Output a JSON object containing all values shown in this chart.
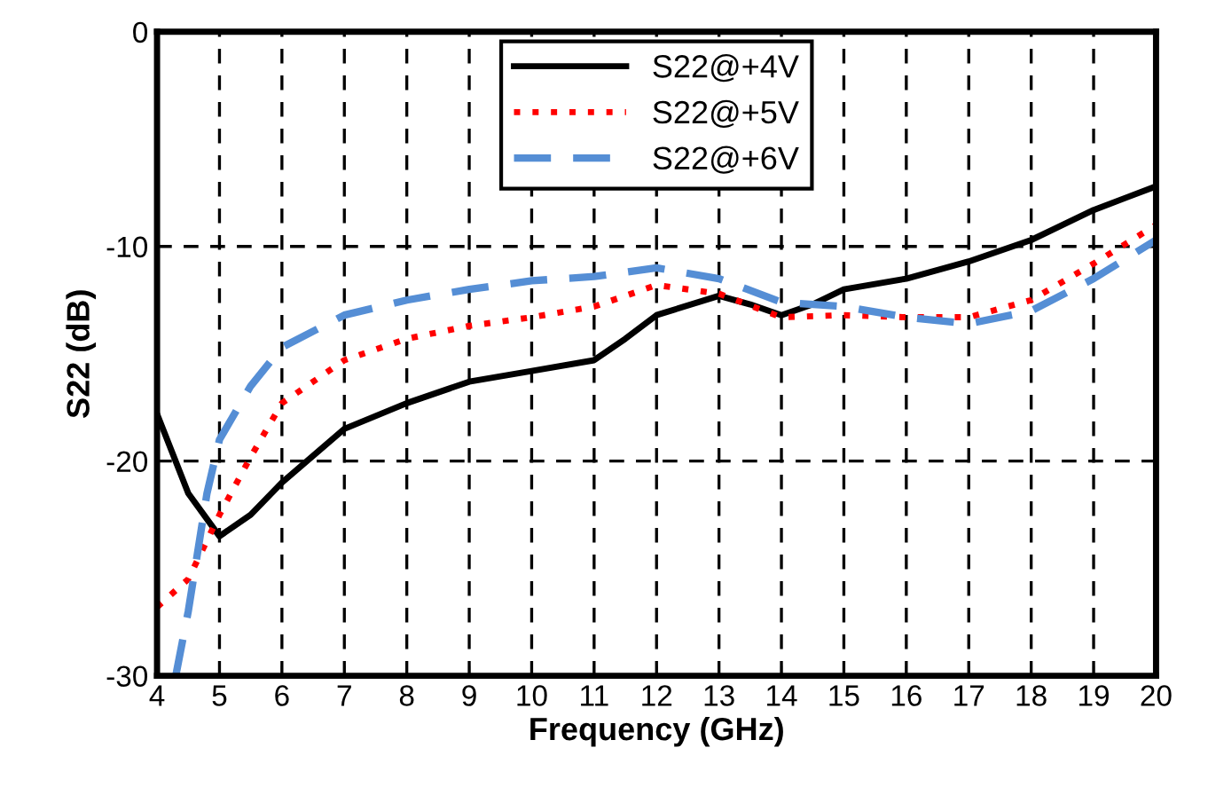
{
  "chart_data": {
    "type": "line",
    "xlabel": "Frequency (GHz)",
    "ylabel": "S22 (dB)",
    "xlim": [
      4,
      20
    ],
    "xticks": [
      4,
      5,
      6,
      7,
      8,
      9,
      10,
      11,
      12,
      13,
      14,
      15,
      16,
      17,
      18,
      19,
      20
    ],
    "ylim": [
      -30,
      0
    ],
    "yticks": [
      -30,
      -20,
      -10,
      0
    ],
    "grid": true,
    "legend": "top",
    "marker": "none",
    "series": [
      {
        "name": "S22@+4V",
        "color": "#000000",
        "line_style": "solid",
        "x": [
          4,
          4.5,
          5,
          5.5,
          6,
          7,
          8,
          9,
          10,
          11,
          11.5,
          12,
          13,
          13.5,
          14,
          14.5,
          15,
          16,
          17,
          18,
          19,
          20
        ],
        "values": [
          -17.8,
          -21.5,
          -23.5,
          -22.5,
          -21,
          -18.5,
          -17.3,
          -16.3,
          -15.8,
          -15.3,
          -14.3,
          -13.2,
          -12.3,
          -12.7,
          -13.2,
          -12.7,
          -12,
          -11.5,
          -10.7,
          -9.7,
          -8.3,
          -7.2
        ]
      },
      {
        "name": "S22@+5V",
        "color": "#ff0000",
        "line_style": "dotted",
        "x": [
          4,
          4.5,
          5,
          5.5,
          6,
          7,
          8,
          9,
          10,
          11,
          12,
          13,
          14,
          15,
          16,
          17,
          18,
          19,
          20
        ],
        "values": [
          -26.8,
          -25.5,
          -22.5,
          -19.8,
          -17.3,
          -15.3,
          -14.3,
          -13.7,
          -13.3,
          -12.8,
          -11.8,
          -12.2,
          -13.3,
          -13.2,
          -13.3,
          -13.3,
          -12.5,
          -10.8,
          -9.0
        ]
      },
      {
        "name": "S22@+6V",
        "color": "#558ed5",
        "line_style": "dashed",
        "x": [
          4.3,
          4.5,
          4.8,
          5,
          5.5,
          6,
          7,
          8,
          9,
          10,
          11,
          12,
          13,
          14,
          15,
          16,
          17,
          18,
          19,
          20
        ],
        "values": [
          -30,
          -27,
          -21.5,
          -19,
          -16.5,
          -14.7,
          -13.2,
          -12.5,
          -12.0,
          -11.6,
          -11.4,
          -11.0,
          -11.5,
          -12.6,
          -12.8,
          -13.3,
          -13.6,
          -13.0,
          -11.5,
          -9.7
        ]
      }
    ]
  }
}
